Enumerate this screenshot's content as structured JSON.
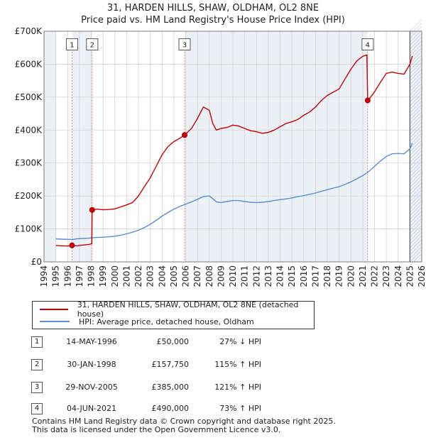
{
  "chart_data": {
    "type": "line",
    "title": "31, HARDEN HILLS, SHAW, OLDHAM, OL2 8NE",
    "subtitle": "Price paid vs. HM Land Registry's House Price Index (HPI)",
    "xlabel": "",
    "ylabel": "",
    "xlim": [
      1994,
      2026
    ],
    "ylim": [
      0,
      700000
    ],
    "y_ticks": [
      {
        "value": 0,
        "label": "£0"
      },
      {
        "value": 100000,
        "label": "£100K"
      },
      {
        "value": 200000,
        "label": "£200K"
      },
      {
        "value": 300000,
        "label": "£300K"
      },
      {
        "value": 400000,
        "label": "£400K"
      },
      {
        "value": 500000,
        "label": "£500K"
      },
      {
        "value": 600000,
        "label": "£600K"
      },
      {
        "value": 700000,
        "label": "£700K"
      }
    ],
    "x_ticks": [
      "1994",
      "1995",
      "1996",
      "1997",
      "1998",
      "1999",
      "2000",
      "2001",
      "2002",
      "2003",
      "2004",
      "2005",
      "2006",
      "2007",
      "2008",
      "2009",
      "2010",
      "2011",
      "2012",
      "2013",
      "2014",
      "2015",
      "2016",
      "2017",
      "2018",
      "2019",
      "2020",
      "2021",
      "2022",
      "2023",
      "2024",
      "2025",
      "2026"
    ],
    "grid": true,
    "series": [
      {
        "name": "31, HARDEN HILLS, SHAW, OLDHAM, OL2 8NE (detached house)",
        "color": "#cc0000",
        "x": [
          1995.0,
          1995.5,
          1996.0,
          1996.37,
          1996.8,
          1997.3,
          1997.8,
          1998.05,
          1998.08,
          1998.5,
          1999.0,
          1999.5,
          2000.0,
          2000.5,
          2001.0,
          2001.5,
          2002.0,
          2002.5,
          2003.0,
          2003.5,
          2004.0,
          2004.5,
          2005.0,
          2005.5,
          2005.91,
          2006.5,
          2007.0,
          2007.5,
          2008.0,
          2008.3,
          2008.6,
          2009.0,
          2009.5,
          2010.0,
          2010.5,
          2011.0,
          2011.5,
          2012.0,
          2012.5,
          2013.0,
          2013.5,
          2014.0,
          2014.5,
          2015.0,
          2015.5,
          2016.0,
          2016.5,
          2017.0,
          2017.5,
          2018.0,
          2018.5,
          2019.0,
          2019.5,
          2020.0,
          2020.5,
          2021.0,
          2021.35,
          2021.42,
          2021.6,
          2022.0,
          2022.5,
          2023.0,
          2023.5,
          2024.0,
          2024.5,
          2025.0,
          2025.2
        ],
        "values": [
          50000,
          49000,
          48000,
          50000,
          49000,
          51000,
          53000,
          55000,
          157750,
          160000,
          158000,
          159000,
          161000,
          167000,
          173000,
          180000,
          200000,
          228000,
          255000,
          290000,
          325000,
          350000,
          365000,
          375000,
          385000,
          405000,
          435000,
          470000,
          460000,
          420000,
          400000,
          405000,
          408000,
          415000,
          412000,
          405000,
          398000,
          395000,
          390000,
          393000,
          400000,
          410000,
          420000,
          425000,
          432000,
          445000,
          455000,
          470000,
          490000,
          505000,
          515000,
          525000,
          555000,
          585000,
          610000,
          624000,
          628000,
          490000,
          497000,
          516000,
          545000,
          572000,
          576000,
          572000,
          570000,
          600000,
          625000
        ]
      },
      {
        "name": "HPI: Average price, detached house, Oldham",
        "color": "#5b8ed6",
        "x": [
          1995.0,
          1995.5,
          1996.0,
          1996.37,
          1996.8,
          1997.3,
          1997.8,
          1998.08,
          1998.5,
          1999.0,
          1999.5,
          2000.0,
          2000.5,
          2001.0,
          2001.5,
          2002.0,
          2002.5,
          2003.0,
          2003.5,
          2004.0,
          2004.5,
          2005.0,
          2005.5,
          2005.91,
          2006.5,
          2007.0,
          2007.5,
          2008.0,
          2008.3,
          2008.6,
          2009.0,
          2009.5,
          2010.0,
          2010.5,
          2011.0,
          2011.5,
          2012.0,
          2012.5,
          2013.0,
          2013.5,
          2014.0,
          2014.5,
          2015.0,
          2015.5,
          2016.0,
          2016.5,
          2017.0,
          2017.5,
          2018.0,
          2018.5,
          2019.0,
          2019.5,
          2020.0,
          2020.5,
          2021.0,
          2021.35,
          2021.6,
          2022.0,
          2022.5,
          2023.0,
          2023.5,
          2024.0,
          2024.5,
          2025.0,
          2025.2
        ],
        "values": [
          70000,
          69000,
          68500,
          68000,
          70000,
          71000,
          72000,
          73000,
          74000,
          75000,
          76000,
          78000,
          81000,
          85000,
          90000,
          96000,
          104000,
          114000,
          126000,
          139000,
          150000,
          160000,
          168000,
          174000,
          182000,
          190000,
          198000,
          200000,
          192000,
          182000,
          180000,
          183000,
          186000,
          186000,
          183000,
          181000,
          180000,
          181000,
          183000,
          186000,
          189000,
          191000,
          194000,
          198000,
          201000,
          205000,
          209000,
          214000,
          219000,
          224000,
          228000,
          235000,
          243000,
          252000,
          262000,
          270000,
          277000,
          290000,
          306000,
          320000,
          328000,
          329000,
          328000,
          343000,
          360000
        ]
      }
    ],
    "annotations": [
      {
        "label": "1",
        "x": 1996.37,
        "value": 50000,
        "box_value": 660000
      },
      {
        "label": "2",
        "x": 1998.08,
        "value": 157750,
        "box_value": 660000
      },
      {
        "label": "3",
        "x": 2005.91,
        "value": 385000,
        "box_value": 660000
      },
      {
        "label": "4",
        "x": 2021.42,
        "value": 490000,
        "box_value": 660000
      }
    ],
    "shaded_periods": [
      {
        "from": 1994.0,
        "to": 1995.0
      },
      {
        "from": 1996.37,
        "to": 1998.08
      },
      {
        "from": 2005.91,
        "to": 2021.42
      },
      {
        "from": 2025.0,
        "to": 2026.0
      }
    ],
    "future_line_x": 2025.0
  },
  "legend": {
    "items": [
      {
        "label": "31, HARDEN HILLS, SHAW, OLDHAM, OL2 8NE (detached house)",
        "color": "#cc0000"
      },
      {
        "label": "HPI: Average price, detached house, Oldham",
        "color": "#5b8ed6"
      }
    ]
  },
  "transactions": [
    {
      "num": "1",
      "date": "14-MAY-1996",
      "price": "£50,000",
      "hpi": "27% ↓ HPI"
    },
    {
      "num": "2",
      "date": "30-JAN-1998",
      "price": "£157,750",
      "hpi": "115% ↑ HPI"
    },
    {
      "num": "3",
      "date": "29-NOV-2005",
      "price": "£385,000",
      "hpi": "121% ↑ HPI"
    },
    {
      "num": "4",
      "date": "04-JUN-2021",
      "price": "£490,000",
      "hpi": "73% ↑ HPI"
    }
  ],
  "footer": {
    "line1": "Contains HM Land Registry data © Crown copyright and database right 2025.",
    "line2": "This data is licensed under the Open Government Licence v3.0."
  }
}
